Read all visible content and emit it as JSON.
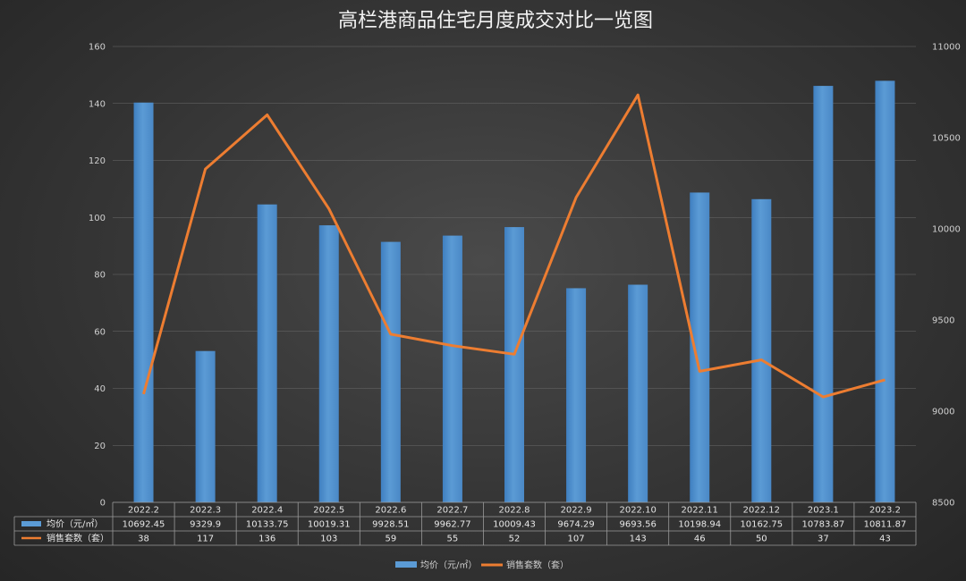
{
  "chart_data": {
    "type": "bar",
    "title": "高栏港商品住宅月度成交对比一览图",
    "categories": [
      "2022.2",
      "2022.3",
      "2022.4",
      "2022.5",
      "2022.6",
      "2022.7",
      "2022.8",
      "2022.9",
      "2022.10",
      "2022.11",
      "2022.12",
      "2023.1",
      "2023.2"
    ],
    "series": [
      {
        "name": "均价（元/㎡）",
        "type": "bar",
        "axis": "right",
        "color": "#5b9bd5",
        "values": [
          10692.45,
          9329.9,
          10133.75,
          10019.31,
          9928.51,
          9962.77,
          10009.43,
          9674.29,
          9693.56,
          10198.94,
          10162.75,
          10783.87,
          10811.87
        ]
      },
      {
        "name": "销售套数（套）",
        "type": "line",
        "axis": "left",
        "color": "#ed7d31",
        "values": [
          38,
          117,
          136,
          103,
          59,
          55,
          52,
          107,
          143,
          46,
          50,
          37,
          43
        ]
      }
    ],
    "y_left": {
      "ylim": [
        0,
        160
      ],
      "ticks": [
        "0",
        "20",
        "40",
        "60",
        "80",
        "100",
        "120",
        "140",
        "160"
      ]
    },
    "y_right": {
      "ylim": [
        8500,
        11000
      ],
      "ticks": [
        "8500",
        "9000",
        "9500",
        "10000",
        "10500",
        "11000"
      ]
    },
    "grid": true,
    "legend_position": "bottom",
    "data_table": true
  }
}
